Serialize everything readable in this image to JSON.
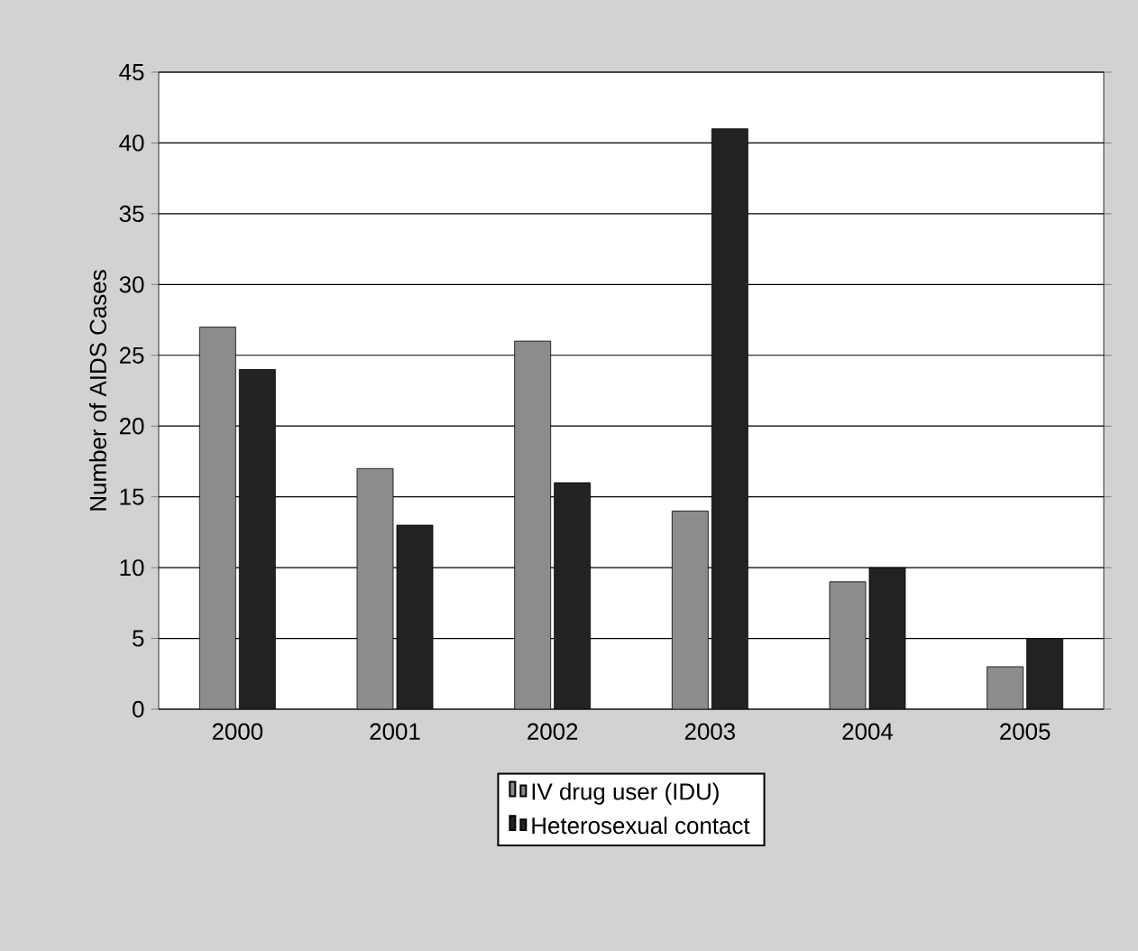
{
  "chart_data": {
    "type": "bar",
    "ylabel": "Number of AIDS Cases",
    "categories": [
      "2000",
      "2001",
      "2002",
      "2003",
      "2004",
      "2005"
    ],
    "series": [
      {
        "name": "IV drug user (IDU)",
        "color": "#8c8c8c",
        "values": [
          27,
          17,
          26,
          14,
          9,
          3
        ]
      },
      {
        "name": "Heterosexual contact",
        "color": "#222222",
        "values": [
          24,
          13,
          16,
          41,
          10,
          5
        ]
      }
    ],
    "ylim": [
      0,
      45
    ],
    "yticks": [
      0,
      5,
      10,
      15,
      20,
      25,
      30,
      35,
      40,
      45
    ],
    "grid": "y",
    "legend": "bottom"
  }
}
